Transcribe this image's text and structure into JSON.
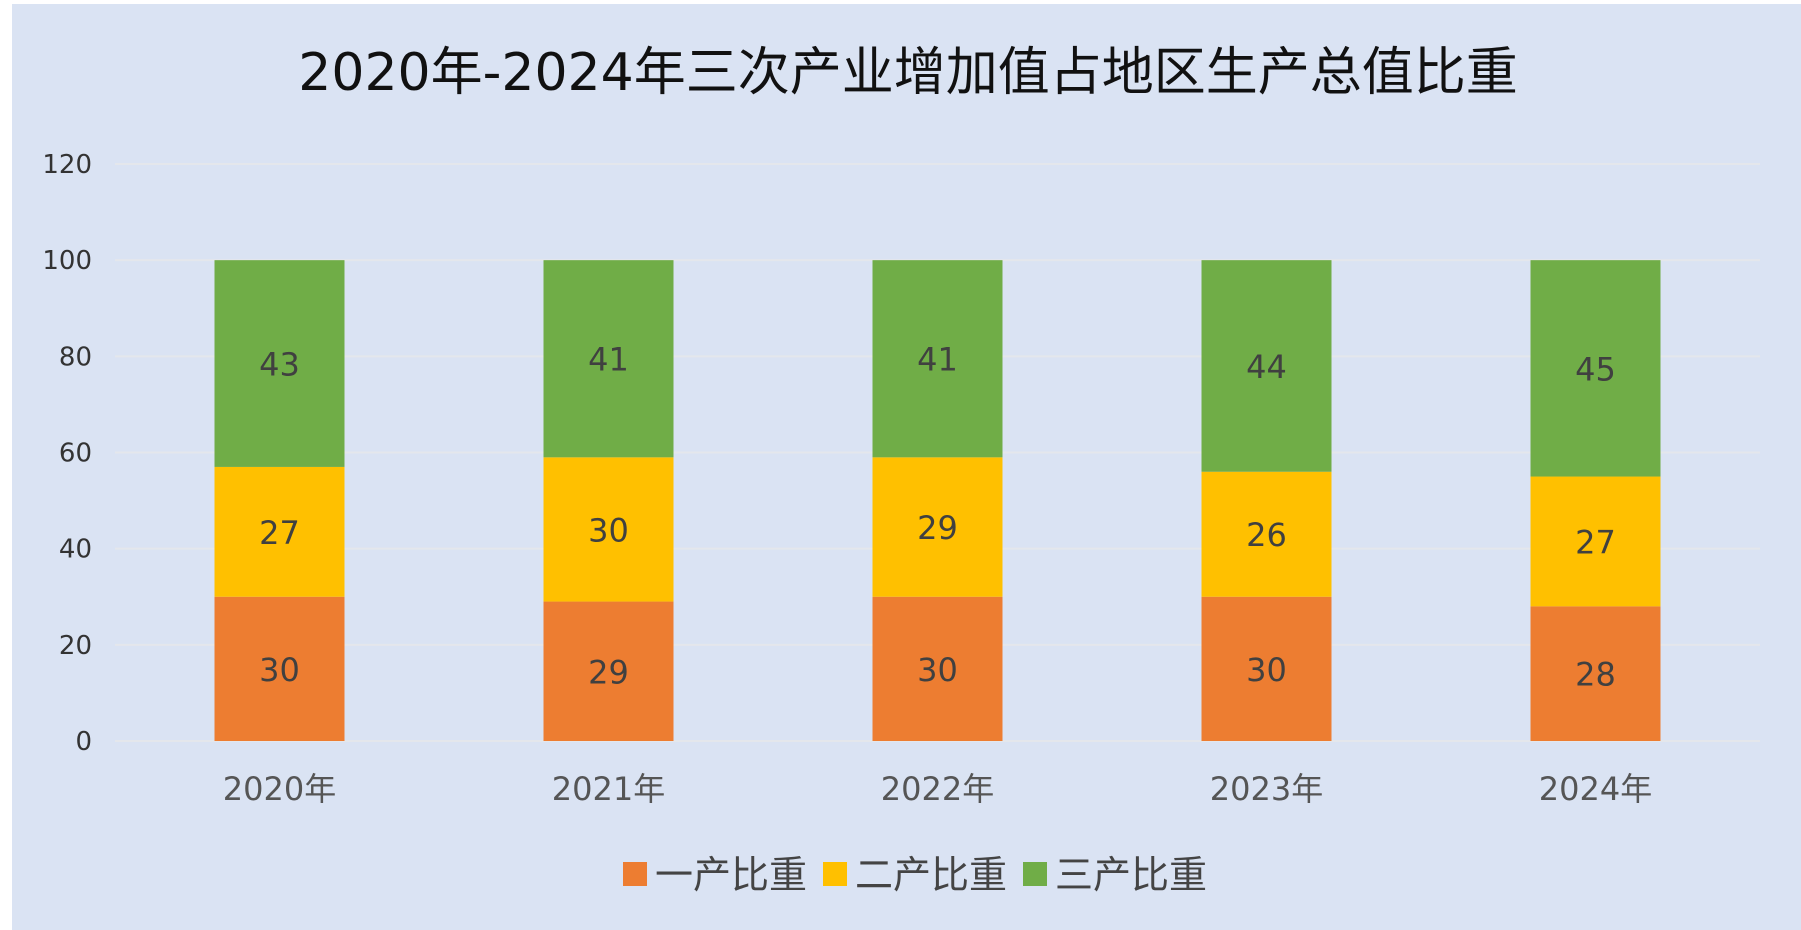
{
  "chart_data": {
    "type": "bar",
    "stacked": true,
    "title": "2020年-2024年三次产业增加值占地区生产总值比重",
    "categories": [
      "2020年",
      "2021年",
      "2022年",
      "2023年",
      "2024年"
    ],
    "series": [
      {
        "name": "一产比重",
        "color": "#ED7D31",
        "values": [
          30,
          29,
          30,
          30,
          28
        ]
      },
      {
        "name": "二产比重",
        "color": "#FFC000",
        "values": [
          27,
          30,
          29,
          26,
          27
        ]
      },
      {
        "name": "三产比重",
        "color": "#70AD47",
        "values": [
          43,
          41,
          41,
          44,
          45
        ]
      }
    ],
    "yticks": [
      0,
      20,
      40,
      60,
      80,
      100,
      120
    ],
    "ylim": [
      0,
      120
    ],
    "grid": true,
    "legend": "bottom",
    "background_color": "#DAE3F3",
    "gridline_color": "#E4E7EC"
  }
}
